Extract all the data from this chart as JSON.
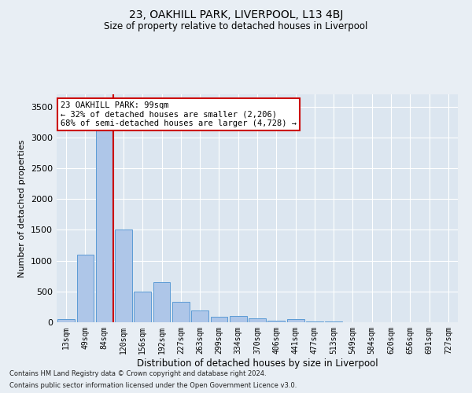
{
  "title": "23, OAKHILL PARK, LIVERPOOL, L13 4BJ",
  "subtitle": "Size of property relative to detached houses in Liverpool",
  "xlabel": "Distribution of detached houses by size in Liverpool",
  "ylabel": "Number of detached properties",
  "footnote1": "Contains HM Land Registry data © Crown copyright and database right 2024.",
  "footnote2": "Contains public sector information licensed under the Open Government Licence v3.0.",
  "annotation_title": "23 OAKHILL PARK: 99sqm",
  "annotation_line1": "← 32% of detached houses are smaller (2,206)",
  "annotation_line2": "68% of semi-detached houses are larger (4,728) →",
  "bar_color": "#aec6e8",
  "bar_edge_color": "#5b9bd5",
  "vline_color": "#cc0000",
  "annotation_box_color": "#cc0000",
  "background_color": "#e8eef4",
  "plot_bg_color": "#dce6f0",
  "categories": [
    "13sqm",
    "49sqm",
    "84sqm",
    "120sqm",
    "156sqm",
    "192sqm",
    "227sqm",
    "263sqm",
    "299sqm",
    "334sqm",
    "370sqm",
    "406sqm",
    "441sqm",
    "477sqm",
    "513sqm",
    "549sqm",
    "584sqm",
    "620sqm",
    "656sqm",
    "691sqm",
    "727sqm"
  ],
  "values": [
    50,
    1100,
    3450,
    1500,
    500,
    650,
    330,
    195,
    90,
    105,
    60,
    20,
    50,
    15,
    10,
    5,
    3,
    2,
    2,
    2,
    2
  ],
  "vline_x_index": 2,
  "ylim": [
    0,
    3700
  ],
  "yticks": [
    0,
    500,
    1000,
    1500,
    2000,
    2500,
    3000,
    3500
  ]
}
